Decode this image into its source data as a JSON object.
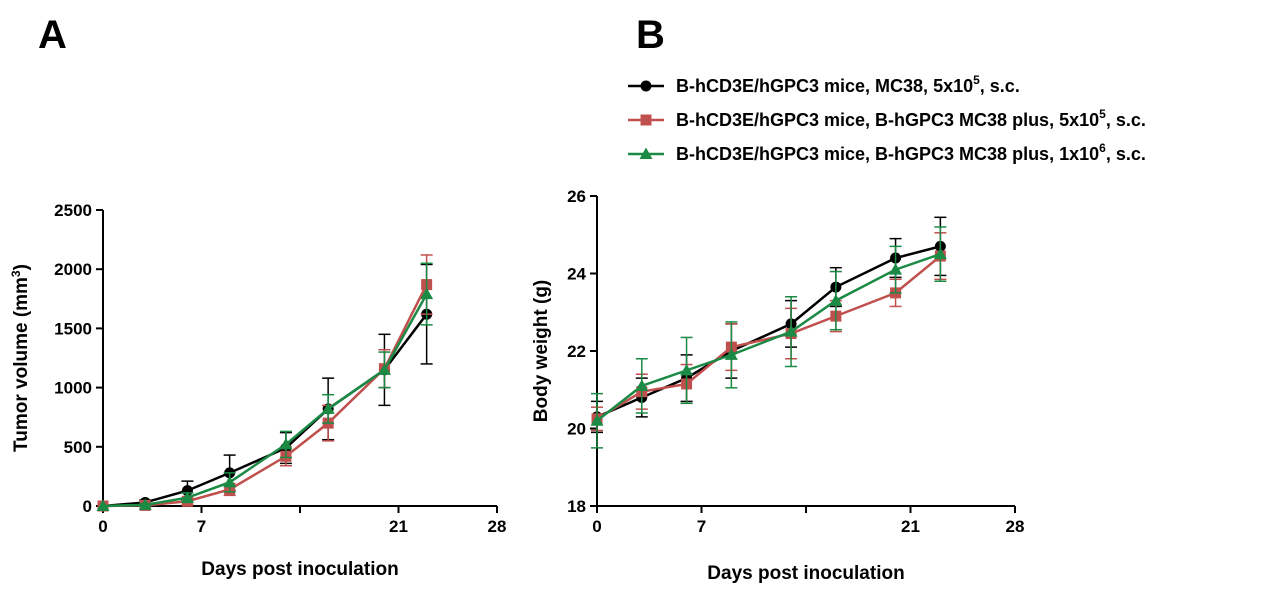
{
  "panels": {
    "a_label": "A",
    "b_label": "B"
  },
  "colors": {
    "black": "#000000",
    "red": "#c0504d",
    "green": "#1a8a45"
  },
  "legend": {
    "items": [
      {
        "prefix": "B-hCD3E/hGPC3 mice, MC38, 5x10",
        "sup": "5",
        "suffix": ", s.c.",
        "color": "#000000",
        "marker": "circle"
      },
      {
        "prefix": "B-hCD3E/hGPC3 mice, B-hGPC3 MC38 plus, 5x10",
        "sup": "5",
        "suffix": ", s.c.",
        "color": "#c0504d",
        "marker": "square"
      },
      {
        "prefix": "B-hCD3E/hGPC3 mice, B-hGPC3 MC38 plus, 1x10",
        "sup": "6",
        "suffix": ", s.c.",
        "color": "#1a8a45",
        "marker": "triangle"
      }
    ]
  },
  "chart_data": [
    {
      "type": "line",
      "panel": "A",
      "xlabel": "Days post inoculation",
      "ylabel_main": "Tumor volume (mm",
      "ylabel_sup": "3",
      "ylabel_end": ")",
      "xlim": [
        0,
        28
      ],
      "ylim": [
        0,
        2500
      ],
      "xticks": [
        0,
        7,
        14,
        21,
        28
      ],
      "xtick_labels": [
        "0",
        "7",
        "",
        "21",
        "28"
      ],
      "yticks": [
        0,
        500,
        1000,
        1500,
        2000,
        2500
      ],
      "ytick_labels": [
        "0",
        "500",
        "1000",
        "1500",
        "2000",
        "2500"
      ],
      "series": [
        {
          "color": "#000000",
          "marker": "circle",
          "x": [
            0,
            3,
            6,
            9,
            13,
            16,
            20,
            23
          ],
          "y": [
            0,
            30,
            130,
            280,
            490,
            820,
            1150,
            1620
          ],
          "err": [
            0,
            20,
            80,
            150,
            130,
            260,
            300,
            420
          ]
        },
        {
          "color": "#c0504d",
          "marker": "square",
          "x": [
            0,
            3,
            6,
            9,
            13,
            16,
            20,
            23
          ],
          "y": [
            0,
            5,
            40,
            140,
            420,
            700,
            1160,
            1870
          ],
          "err": [
            0,
            10,
            30,
            50,
            80,
            150,
            160,
            250
          ]
        },
        {
          "color": "#1a8a45",
          "marker": "triangle",
          "x": [
            0,
            3,
            6,
            9,
            13,
            16,
            20,
            23
          ],
          "y": [
            0,
            10,
            70,
            200,
            520,
            820,
            1150,
            1790
          ],
          "err": [
            0,
            10,
            40,
            80,
            110,
            120,
            150,
            260
          ]
        }
      ]
    },
    {
      "type": "line",
      "panel": "B",
      "xlabel": "Days post inoculation",
      "ylabel": "Body weight (g)",
      "xlim": [
        0,
        28
      ],
      "ylim": [
        18,
        26
      ],
      "xticks": [
        0,
        7,
        14,
        21,
        28
      ],
      "xtick_labels": [
        "0",
        "7",
        "",
        "21",
        "28"
      ],
      "yticks": [
        18,
        20,
        22,
        24,
        26
      ],
      "ytick_labels": [
        "18",
        "20",
        "22",
        "24",
        "26"
      ],
      "series": [
        {
          "color": "#000000",
          "marker": "circle",
          "x": [
            0,
            3,
            6,
            9,
            13,
            16,
            20,
            23
          ],
          "y": [
            20.3,
            20.8,
            21.3,
            22.0,
            22.7,
            23.65,
            24.4,
            24.7
          ],
          "err": [
            0.4,
            0.5,
            0.6,
            0.7,
            0.6,
            0.5,
            0.5,
            0.75
          ]
        },
        {
          "color": "#c0504d",
          "marker": "square",
          "x": [
            0,
            3,
            6,
            9,
            13,
            16,
            20,
            23
          ],
          "y": [
            20.25,
            20.95,
            21.15,
            22.1,
            22.45,
            22.9,
            23.5,
            24.45
          ],
          "err": [
            0.3,
            0.45,
            0.5,
            0.6,
            0.65,
            0.4,
            0.35,
            0.6
          ]
        },
        {
          "color": "#1a8a45",
          "marker": "triangle",
          "x": [
            0,
            3,
            6,
            9,
            13,
            16,
            20,
            23
          ],
          "y": [
            20.2,
            21.1,
            21.5,
            21.9,
            22.5,
            23.3,
            24.1,
            24.5
          ],
          "err": [
            0.7,
            0.7,
            0.85,
            0.85,
            0.9,
            0.75,
            0.6,
            0.7
          ]
        }
      ]
    }
  ]
}
